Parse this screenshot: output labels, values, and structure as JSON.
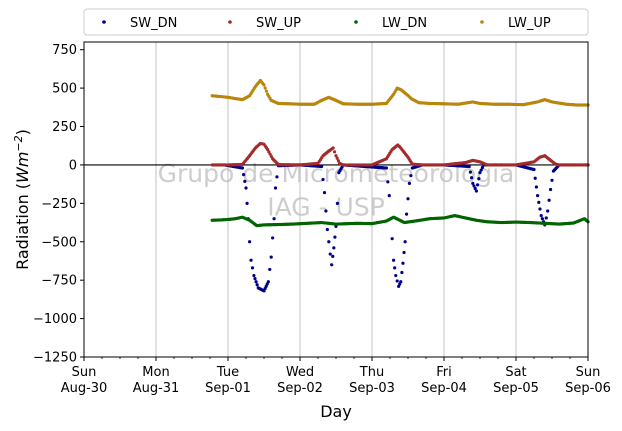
{
  "chart_data": {
    "type": "scatter",
    "title": "",
    "xlabel": "Day",
    "ylabel": "Radiation",
    "ylabel_unit": "Wm",
    "ylabel_exponent": "−2",
    "ylim": [
      -1250,
      800
    ],
    "yticks": [
      750,
      500,
      250,
      0,
      -250,
      -500,
      -750,
      -1000,
      -1250
    ],
    "ytick_labels": [
      "750",
      "500",
      "250",
      "0",
      "−250",
      "−500",
      "−750",
      "−1000",
      "−1250"
    ],
    "xlim": [
      0,
      7
    ],
    "xticks": [
      {
        "x": 0,
        "day": "Sun",
        "date": "Aug-30"
      },
      {
        "x": 1,
        "day": "Mon",
        "date": "Aug-31"
      },
      {
        "x": 2,
        "day": "Tue",
        "date": "Sep-01"
      },
      {
        "x": 3,
        "day": "Wed",
        "date": "Sep-02"
      },
      {
        "x": 4,
        "day": "Thu",
        "date": "Sep-03"
      },
      {
        "x": 5,
        "day": "Fri",
        "date": "Sep-04"
      },
      {
        "x": 6,
        "day": "Sat",
        "date": "Sep-05"
      },
      {
        "x": 7,
        "day": "Sun",
        "date": "Sep-06"
      }
    ],
    "grid": "vertical",
    "legend_position": "top",
    "watermark": [
      "Grupo de Micrometeorologia",
      "IAG - USP"
    ],
    "series": [
      {
        "name": "SW_DN",
        "color": "#00008b",
        "points": [
          [
            1.8,
            0
          ],
          [
            1.95,
            0
          ],
          [
            2.2,
            -20
          ],
          [
            2.25,
            -150
          ],
          [
            2.28,
            -350
          ],
          [
            2.3,
            -500
          ],
          [
            2.32,
            -620
          ],
          [
            2.36,
            -720
          ],
          [
            2.42,
            -800
          ],
          [
            2.5,
            -820
          ],
          [
            2.56,
            -760
          ],
          [
            2.6,
            -600
          ],
          [
            2.64,
            -350
          ],
          [
            2.66,
            -150
          ],
          [
            2.7,
            -5
          ],
          [
            3.0,
            0
          ],
          [
            3.3,
            -10
          ],
          [
            3.34,
            -180
          ],
          [
            3.36,
            -300
          ],
          [
            3.38,
            -420
          ],
          [
            3.4,
            -500
          ],
          [
            3.42,
            -580
          ],
          [
            3.44,
            -650
          ],
          [
            3.47,
            -540
          ],
          [
            3.5,
            -400
          ],
          [
            3.52,
            -250
          ],
          [
            3.54,
            -50
          ],
          [
            3.6,
            0
          ],
          [
            4.2,
            -20
          ],
          [
            4.24,
            -200
          ],
          [
            4.26,
            -350
          ],
          [
            4.28,
            -480
          ],
          [
            4.3,
            -620
          ],
          [
            4.33,
            -720
          ],
          [
            4.37,
            -790
          ],
          [
            4.4,
            -760
          ],
          [
            4.43,
            -640
          ],
          [
            4.46,
            -500
          ],
          [
            4.48,
            -320
          ],
          [
            4.52,
            -120
          ],
          [
            4.56,
            -20
          ],
          [
            4.7,
            0
          ],
          [
            5.0,
            0
          ],
          [
            5.35,
            -10
          ],
          [
            5.4,
            -120
          ],
          [
            5.45,
            -170
          ],
          [
            5.5,
            -50
          ],
          [
            5.55,
            0
          ],
          [
            6.0,
            0
          ],
          [
            6.25,
            -30
          ],
          [
            6.3,
            -200
          ],
          [
            6.35,
            -330
          ],
          [
            6.4,
            -390
          ],
          [
            6.44,
            -300
          ],
          [
            6.48,
            -160
          ],
          [
            6.52,
            -40
          ],
          [
            6.6,
            0
          ],
          [
            7.0,
            0
          ]
        ]
      },
      {
        "name": "SW_UP",
        "color": "#a52a2a",
        "points": [
          [
            1.78,
            0
          ],
          [
            2.0,
            0
          ],
          [
            2.2,
            3
          ],
          [
            2.3,
            60
          ],
          [
            2.38,
            110
          ],
          [
            2.45,
            140
          ],
          [
            2.5,
            135
          ],
          [
            2.55,
            100
          ],
          [
            2.62,
            40
          ],
          [
            2.7,
            2
          ],
          [
            3.0,
            0
          ],
          [
            3.25,
            10
          ],
          [
            3.32,
            60
          ],
          [
            3.4,
            90
          ],
          [
            3.46,
            110
          ],
          [
            3.5,
            60
          ],
          [
            3.55,
            10
          ],
          [
            3.6,
            0
          ],
          [
            4.0,
            0
          ],
          [
            4.2,
            40
          ],
          [
            4.28,
            100
          ],
          [
            4.36,
            130
          ],
          [
            4.4,
            110
          ],
          [
            4.45,
            80
          ],
          [
            4.5,
            50
          ],
          [
            4.56,
            5
          ],
          [
            4.7,
            0
          ],
          [
            5.0,
            0
          ],
          [
            5.3,
            15
          ],
          [
            5.4,
            30
          ],
          [
            5.5,
            20
          ],
          [
            5.6,
            0
          ],
          [
            6.0,
            0
          ],
          [
            6.25,
            20
          ],
          [
            6.33,
            50
          ],
          [
            6.4,
            60
          ],
          [
            6.48,
            30
          ],
          [
            6.55,
            5
          ],
          [
            6.6,
            0
          ],
          [
            7.0,
            0
          ]
        ]
      },
      {
        "name": "LW_DN",
        "color": "#006400",
        "points": [
          [
            1.78,
            -360
          ],
          [
            1.9,
            -358
          ],
          [
            2.0,
            -355
          ],
          [
            2.1,
            -350
          ],
          [
            2.2,
            -340
          ],
          [
            2.3,
            -360
          ],
          [
            2.4,
            -395
          ],
          [
            2.5,
            -390
          ],
          [
            2.7,
            -388
          ],
          [
            2.9,
            -385
          ],
          [
            3.1,
            -380
          ],
          [
            3.3,
            -375
          ],
          [
            3.5,
            -385
          ],
          [
            3.8,
            -380
          ],
          [
            4.0,
            -382
          ],
          [
            4.2,
            -365
          ],
          [
            4.3,
            -340
          ],
          [
            4.45,
            -375
          ],
          [
            4.6,
            -365
          ],
          [
            4.8,
            -350
          ],
          [
            5.0,
            -345
          ],
          [
            5.15,
            -330
          ],
          [
            5.3,
            -345
          ],
          [
            5.45,
            -360
          ],
          [
            5.6,
            -370
          ],
          [
            5.8,
            -375
          ],
          [
            6.0,
            -372
          ],
          [
            6.2,
            -375
          ],
          [
            6.4,
            -380
          ],
          [
            6.6,
            -385
          ],
          [
            6.8,
            -378
          ],
          [
            6.95,
            -350
          ],
          [
            7.0,
            -370
          ]
        ]
      },
      {
        "name": "LW_UP",
        "color": "#b8860b",
        "points": [
          [
            1.78,
            450
          ],
          [
            1.9,
            445
          ],
          [
            2.0,
            440
          ],
          [
            2.1,
            432
          ],
          [
            2.2,
            425
          ],
          [
            2.3,
            450
          ],
          [
            2.38,
            510
          ],
          [
            2.45,
            550
          ],
          [
            2.5,
            520
          ],
          [
            2.55,
            460
          ],
          [
            2.6,
            420
          ],
          [
            2.7,
            400
          ],
          [
            2.85,
            398
          ],
          [
            3.0,
            395
          ],
          [
            3.2,
            395
          ],
          [
            3.3,
            420
          ],
          [
            3.4,
            440
          ],
          [
            3.5,
            420
          ],
          [
            3.6,
            398
          ],
          [
            3.8,
            395
          ],
          [
            4.0,
            395
          ],
          [
            4.2,
            400
          ],
          [
            4.3,
            460
          ],
          [
            4.35,
            500
          ],
          [
            4.4,
            490
          ],
          [
            4.48,
            460
          ],
          [
            4.55,
            430
          ],
          [
            4.65,
            405
          ],
          [
            4.8,
            400
          ],
          [
            5.0,
            398
          ],
          [
            5.2,
            395
          ],
          [
            5.4,
            410
          ],
          [
            5.5,
            400
          ],
          [
            5.7,
            395
          ],
          [
            5.9,
            395
          ],
          [
            6.1,
            392
          ],
          [
            6.3,
            410
          ],
          [
            6.4,
            425
          ],
          [
            6.5,
            410
          ],
          [
            6.7,
            395
          ],
          [
            6.85,
            390
          ],
          [
            7.0,
            390
          ]
        ]
      }
    ]
  }
}
